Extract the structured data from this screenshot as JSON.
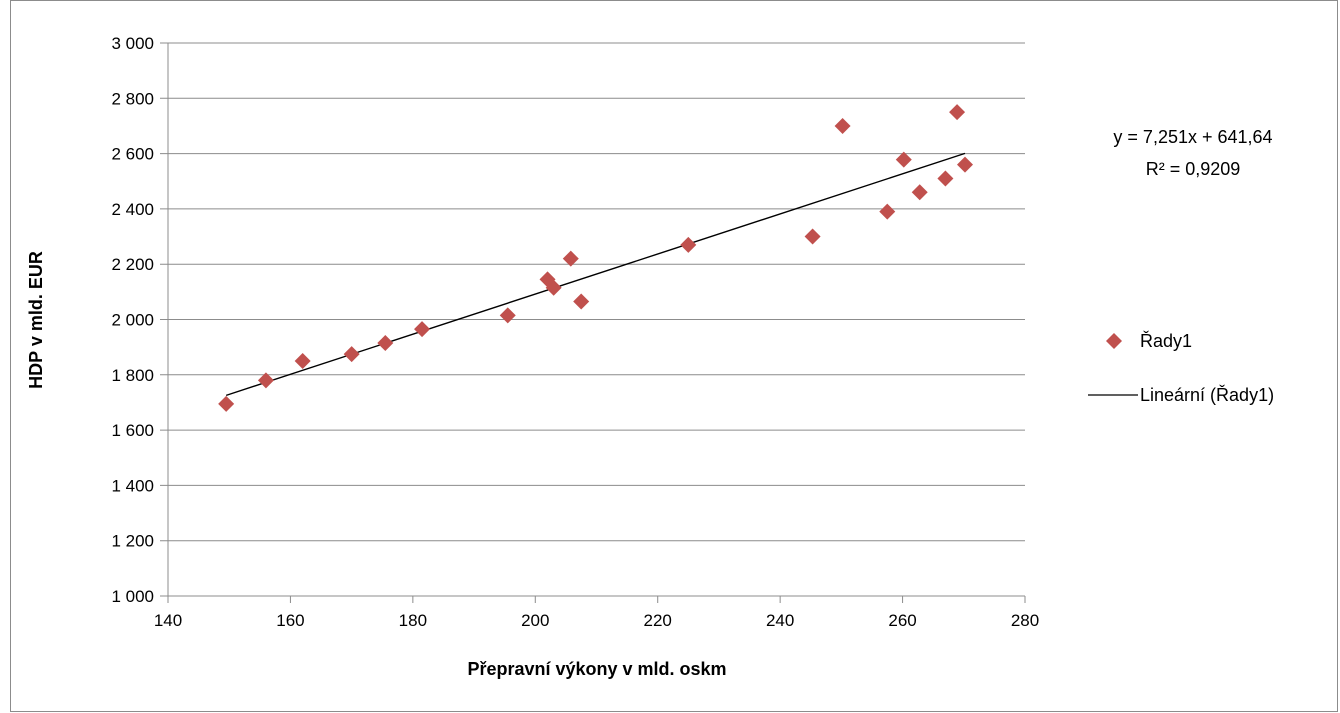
{
  "chart_data": {
    "type": "scatter",
    "title": "",
    "xlabel": "Přepravní výkony v mld. oskm",
    "ylabel": "HDP v mld. EUR",
    "xlim": [
      140,
      280
    ],
    "ylim": [
      1000,
      3000
    ],
    "x_ticks": [
      140,
      160,
      180,
      200,
      220,
      240,
      260,
      280
    ],
    "y_ticks": [
      1000,
      1200,
      1400,
      1600,
      1800,
      2000,
      2200,
      2400,
      2600,
      2800,
      3000
    ],
    "x_tick_labels": [
      "140",
      "160",
      "180",
      "200",
      "220",
      "240",
      "260",
      "280"
    ],
    "y_tick_labels": [
      "1 000",
      "1 200",
      "1 400",
      "1 600",
      "1 800",
      "2 000",
      "2 200",
      "2 400",
      "2 600",
      "2 800",
      "3 000"
    ],
    "grid": "horizontal",
    "legend_position": "right",
    "series": [
      {
        "name": "Řady1",
        "marker": "diamond",
        "color": "#c0504d",
        "points": [
          {
            "x": 149.5,
            "y": 1695
          },
          {
            "x": 156.0,
            "y": 1780
          },
          {
            "x": 162.0,
            "y": 1850
          },
          {
            "x": 170.0,
            "y": 1875
          },
          {
            "x": 175.5,
            "y": 1915
          },
          {
            "x": 181.5,
            "y": 1965
          },
          {
            "x": 195.5,
            "y": 2015
          },
          {
            "x": 202.0,
            "y": 2145
          },
          {
            "x": 203.0,
            "y": 2115
          },
          {
            "x": 205.8,
            "y": 2220
          },
          {
            "x": 207.5,
            "y": 2065
          },
          {
            "x": 225.0,
            "y": 2270
          },
          {
            "x": 245.3,
            "y": 2300
          },
          {
            "x": 250.2,
            "y": 2700
          },
          {
            "x": 257.5,
            "y": 2390
          },
          {
            "x": 260.2,
            "y": 2578
          },
          {
            "x": 262.8,
            "y": 2460
          },
          {
            "x": 267.0,
            "y": 2510
          },
          {
            "x": 268.9,
            "y": 2750
          },
          {
            "x": 270.2,
            "y": 2560
          }
        ]
      }
    ],
    "trendline": {
      "name": "Lineární (Řady1)",
      "type": "linear",
      "color": "#000000",
      "slope": 7.251,
      "intercept": 641.64,
      "x_range": [
        149.5,
        270.2
      ],
      "equation_text": "y = 7,251x + 641,64",
      "r2_text": "R² = 0,9209"
    }
  }
}
